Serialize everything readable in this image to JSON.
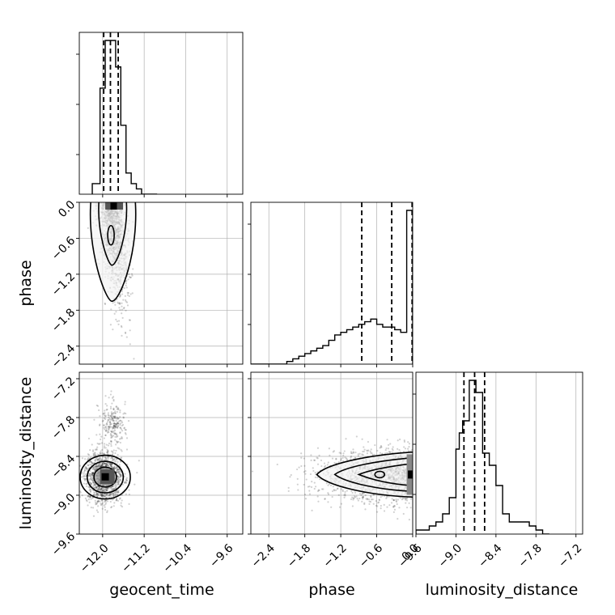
{
  "chart_data": {
    "type": "corner",
    "parameters": [
      "geocent_time",
      "phase",
      "luminosity_distance"
    ],
    "grid": true,
    "axes": {
      "geocent_time": {
        "range": [
          -12.45,
          -9.3
        ],
        "ticks": [
          "−12.0",
          "−11.2",
          "−10.4",
          "−9.6"
        ],
        "tick_values": [
          -12.0,
          -11.2,
          -10.4,
          -9.6
        ]
      },
      "phase": {
        "range": [
          -2.7,
          0.0
        ],
        "ticks": [
          "−2.4",
          "−1.8",
          "−1.2",
          "−0.6",
          "0.0"
        ],
        "tick_values": [
          -2.4,
          -1.8,
          -1.2,
          -0.6,
          0.0
        ]
      },
      "luminosity_distance": {
        "range": [
          -9.6,
          -7.1
        ],
        "ticks": [
          "−9.6",
          "−9.0",
          "−8.4",
          "−7.8",
          "−7.2"
        ],
        "tick_values": [
          -9.6,
          -9.0,
          -8.4,
          -7.8,
          -7.2
        ]
      }
    },
    "histograms": {
      "geocent_time": {
        "bin_edges": [
          -12.2,
          -12.05,
          -11.95,
          -11.85,
          -11.75,
          -11.65,
          -11.55,
          -11.45,
          -11.35,
          -11.25,
          -11.15,
          -11.05,
          -10.95
        ],
        "counts": [
          2,
          20,
          29,
          29,
          24,
          13,
          4,
          2,
          1,
          0,
          0,
          0
        ],
        "quantiles": [
          -11.98,
          -11.85,
          -11.7
        ]
      },
      "phase": {
        "bin_edges": [
          -2.7,
          -2.4,
          -2.3,
          -2.2,
          -2.1,
          -2.0,
          -1.9,
          -1.8,
          -1.7,
          -1.6,
          -1.5,
          -1.4,
          -1.3,
          -1.2,
          -1.1,
          -1.0,
          -0.9,
          -0.8,
          -0.7,
          -0.6,
          -0.5,
          -0.4,
          -0.3,
          -0.2,
          -0.1,
          0.0
        ],
        "counts": [
          0,
          0,
          0,
          0,
          1,
          2,
          3,
          4,
          5,
          6,
          7,
          9,
          11,
          12,
          13,
          14,
          15,
          16,
          17,
          15,
          14,
          14,
          13,
          12,
          58
        ],
        "quantiles": [
          -0.85,
          -0.35,
          -0.01
        ]
      },
      "luminosity_distance": {
        "bin_edges": [
          -9.6,
          -9.4,
          -9.3,
          -9.2,
          -9.1,
          -9.0,
          -8.95,
          -8.9,
          -8.8,
          -8.7,
          -8.6,
          -8.5,
          -8.4,
          -8.3,
          -8.2,
          -8.0,
          -7.9,
          -7.8,
          -7.7,
          -7.6
        ],
        "counts": [
          1,
          2,
          3,
          5,
          9,
          21,
          25,
          28,
          38,
          35,
          20,
          17,
          12,
          5,
          3,
          3,
          2,
          1,
          0
        ],
        "quantiles": [
          -8.88,
          -8.72,
          -8.57
        ]
      }
    },
    "contours_2d": {
      "phase_vs_geocent_time": {
        "density_center": [
          -11.82,
          -0.1
        ]
      },
      "luminosity_distance_vs_geocent_time": {
        "density_center": [
          -11.98,
          -8.72
        ]
      },
      "luminosity_distance_vs_phase": {
        "density_center": [
          -0.05,
          -8.7
        ]
      }
    }
  }
}
